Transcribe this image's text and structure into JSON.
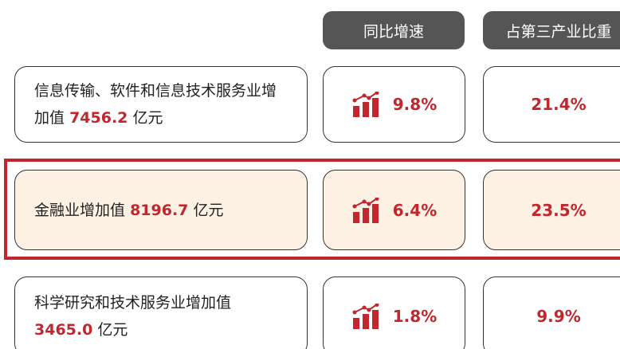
{
  "header": {
    "columns": [
      "同比增速",
      "占第三产业比重"
    ]
  },
  "rows": [
    {
      "label": "信息传输、软件和信息技术服务业增加值",
      "amount": "7456.2",
      "unit": "亿元",
      "growth": "9.8%",
      "share": "21.4%",
      "highlight": false
    },
    {
      "label": "金融业增加值",
      "amount": "8196.7",
      "unit": "亿元",
      "growth": "6.4%",
      "share": "23.5%",
      "highlight": true
    },
    {
      "label": "科学研究和技术服务业增加值",
      "amount": "3465.0",
      "unit": "亿元",
      "growth": "1.8%",
      "share": "9.9%",
      "highlight": false
    }
  ]
}
